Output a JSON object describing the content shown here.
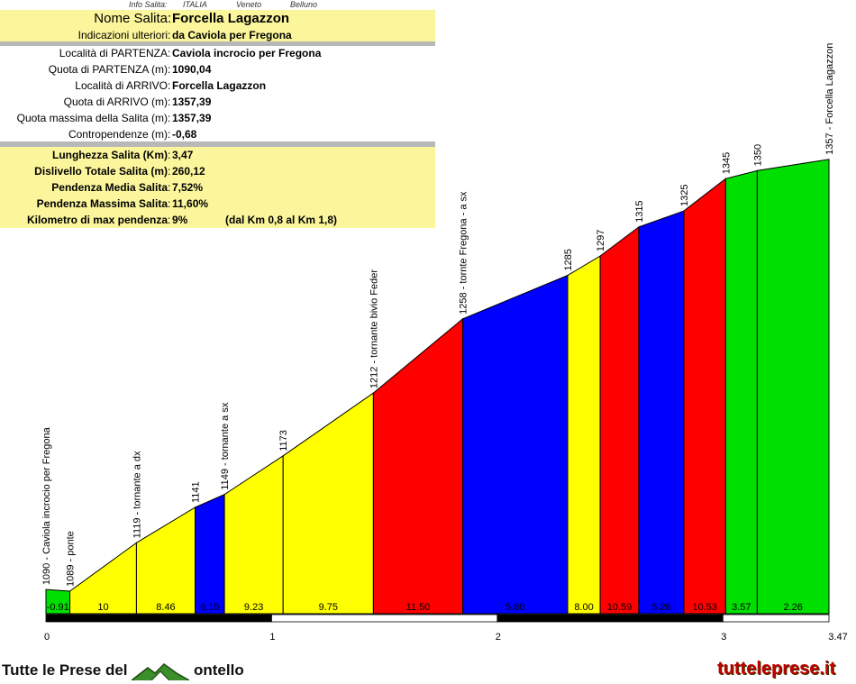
{
  "header": {
    "info_label": "Info Salita:",
    "country": "ITALIA",
    "region": "Veneto",
    "province": "Belluno"
  },
  "info": {
    "nome_label": "Nome Salita",
    "nome": "Forcella Lagazzon",
    "indicazioni_label": "Indicazioni ulteriori",
    "indicazioni": "da Caviola per Fregona",
    "partenza_label": "Località di PARTENZA",
    "partenza": "Caviola incrocio per Fregona",
    "quota_partenza_label": "Quota di PARTENZA (m)",
    "quota_partenza": "1090,04",
    "arrivo_label": "Località di ARRIVO",
    "arrivo": "Forcella Lagazzon",
    "quota_arrivo_label": "Quota di ARRIVO (m)",
    "quota_arrivo": "1357,39",
    "quota_max_label": "Quota massima della Salita (m)",
    "quota_max": "1357,39",
    "contropendenze_label": "Contropendenze (m)",
    "contropendenze": "-0,68",
    "lunghezza_label": "Lunghezza Salita (Km)",
    "lunghezza": "3,47",
    "dislivello_label": "Dislivello Totale Salita (m)",
    "dislivello": "260,12",
    "pend_media_label": "Pendenza Media Salita",
    "pend_media": "7,52%",
    "pend_max_label": "Pendenza Massima Salita",
    "pend_max": "11,60%",
    "km_max_label": "Kilometro di max pendenza",
    "km_max": "9%",
    "km_max_range": "(dal Km 0,8 al Km 1,8)"
  },
  "chart_data": {
    "type": "area",
    "x_unit": "km",
    "xlim": [
      0,
      3.47
    ],
    "ylim": [
      1075,
      1372
    ],
    "x_ticks": [
      0,
      1,
      2,
      3,
      3.47
    ],
    "x_tick_labels": [
      "0",
      "1",
      "2",
      "3",
      "3.47"
    ],
    "points": [
      {
        "x": 0.0,
        "y": 1090,
        "label": "1090 - Caviola incrocio per Fregona"
      },
      {
        "x": 0.106,
        "y": 1089,
        "label": "1089 - ponte"
      },
      {
        "x": 0.401,
        "y": 1119,
        "label": "1119 - tornante a dx"
      },
      {
        "x": 0.661,
        "y": 1141,
        "label": "1141"
      },
      {
        "x": 0.791,
        "y": 1149,
        "label": "1149 - tornante a sx"
      },
      {
        "x": 1.051,
        "y": 1173,
        "label": "1173"
      },
      {
        "x": 1.451,
        "y": 1212,
        "label": "1212 - tornante bivio Feder"
      },
      {
        "x": 1.847,
        "y": 1258,
        "label": "1258 - tornte Fregona - a sx"
      },
      {
        "x": 2.312,
        "y": 1285,
        "label": "1285"
      },
      {
        "x": 2.456,
        "y": 1297,
        "label": "1297"
      },
      {
        "x": 2.627,
        "y": 1315,
        "label": "1315"
      },
      {
        "x": 2.827,
        "y": 1325,
        "label": "1325"
      },
      {
        "x": 3.012,
        "y": 1345,
        "label": "1345"
      },
      {
        "x": 3.152,
        "y": 1350,
        "label": "1350"
      },
      {
        "x": 3.47,
        "y": 1357,
        "label": "1357 - Forcella Lagazzon"
      }
    ],
    "segments": [
      {
        "grade": "-0.91",
        "color": "#00e000"
      },
      {
        "grade": "10",
        "color": "#ffff00"
      },
      {
        "grade": "8.46",
        "color": "#ffff00"
      },
      {
        "grade": "6.15",
        "color": "#0000ff"
      },
      {
        "grade": "9.23",
        "color": "#ffff00"
      },
      {
        "grade": "9.75",
        "color": "#ffff00"
      },
      {
        "grade": "11.50",
        "color": "#ff0000"
      },
      {
        "grade": "5.80",
        "color": "#0000ff"
      },
      {
        "grade": "8.00",
        "color": "#ffff00"
      },
      {
        "grade": "10.59",
        "color": "#ff0000"
      },
      {
        "grade": "5.26",
        "color": "#0000ff"
      },
      {
        "grade": "10.53",
        "color": "#ff0000"
      },
      {
        "grade": "3.57",
        "color": "#00e000"
      },
      {
        "grade": "2.26",
        "color": "#00e000"
      }
    ]
  },
  "footer": {
    "brand_left_prefix": "Tutte le Prese del",
    "brand_left_suffix": "ontello",
    "brand_right": "tutteleprese.it"
  }
}
